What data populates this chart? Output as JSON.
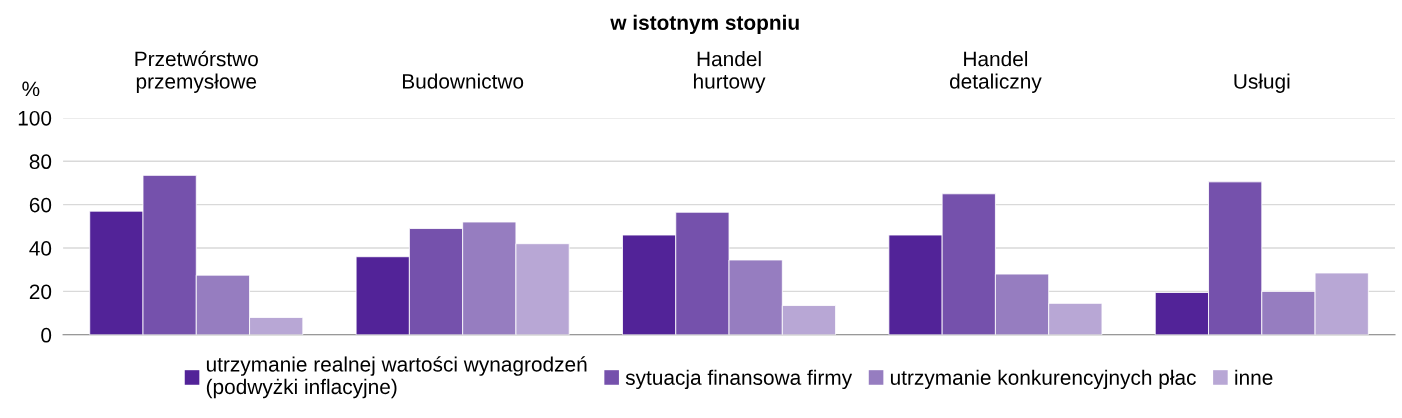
{
  "chart_data": {
    "type": "bar",
    "title": "w istotnym stopniu",
    "ylabel": "%",
    "categories": [
      "Przetwórstwo\nprzemysłowe",
      "Budownictwo",
      "Handel\nhurtowy",
      "Handel\ndetaliczny",
      "Usługi"
    ],
    "series": [
      {
        "name": "utrzymanie realnej wartości wynagrodzeń\n(podwyżki inflacyjne)",
        "color": "#522398",
        "values": [
          57,
          36,
          46,
          46,
          19.5
        ]
      },
      {
        "name": "sytuacja finansowa firmy",
        "color": "#7551ac",
        "values": [
          73.5,
          49,
          56.5,
          65,
          70.5
        ]
      },
      {
        "name": "utrzymanie konkurencyjnych płac",
        "color": "#967dc0",
        "values": [
          27.5,
          52,
          34.5,
          28,
          20
        ]
      },
      {
        "name": "inne",
        "color": "#b8a7d5",
        "values": [
          8,
          42,
          13.5,
          14.5,
          28.5
        ]
      }
    ],
    "ylim": [
      0,
      100
    ],
    "yticks": [
      0,
      20,
      40,
      60,
      80,
      100
    ],
    "grid": "y",
    "legend": "bottom"
  }
}
